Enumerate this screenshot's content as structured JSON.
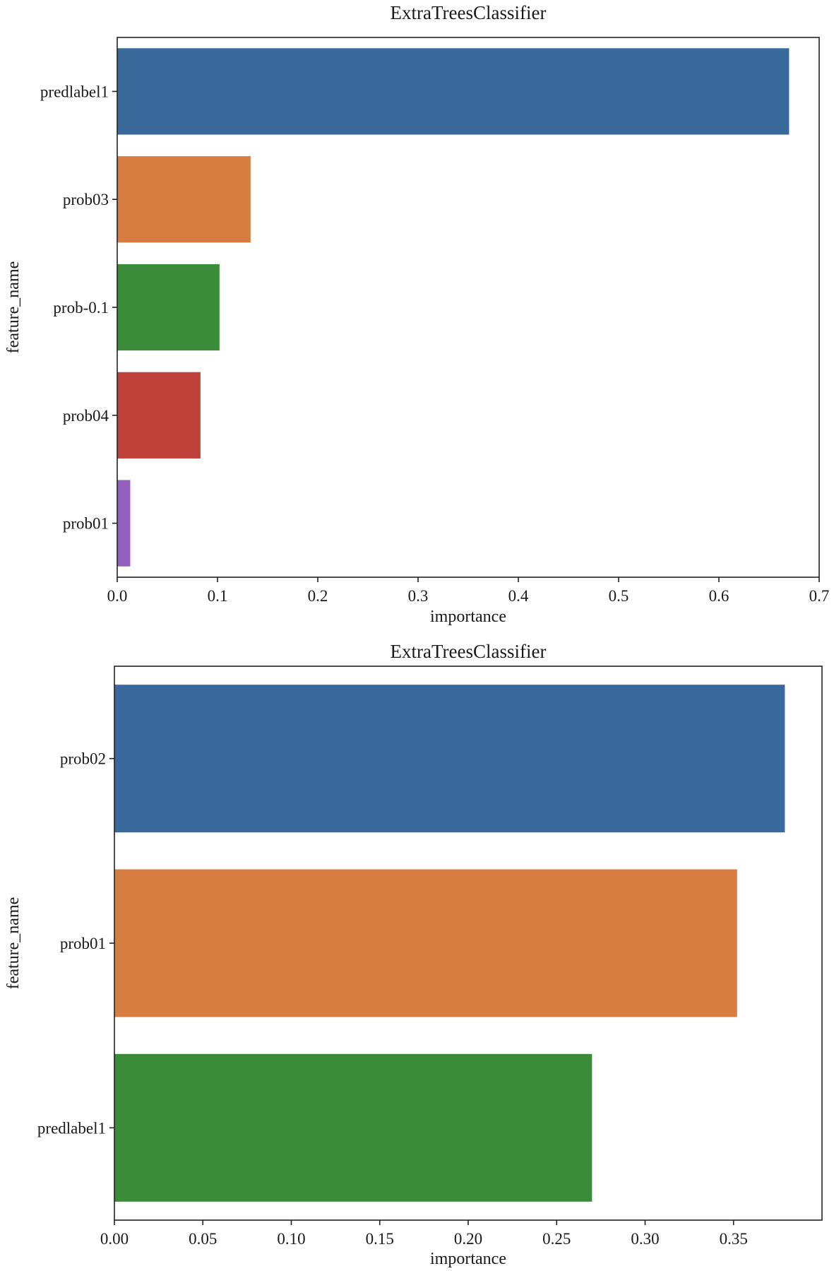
{
  "chart_data": [
    {
      "type": "bar",
      "orientation": "horizontal",
      "title": "ExtraTreesClassifier",
      "xlabel": "importance",
      "ylabel": "feature_name",
      "categories": [
        "predlabel1",
        "prob03",
        "prob-0.1",
        "prob04",
        "prob01"
      ],
      "values": [
        0.67,
        0.133,
        0.102,
        0.083,
        0.013
      ],
      "colors": [
        "#3a6a9c",
        "#d87d42",
        "#3a8c3a",
        "#c0403a",
        "#9460bd"
      ],
      "xlim": [
        0,
        0.7
      ],
      "xticks": [
        0.0,
        0.1,
        0.2,
        0.3,
        0.4,
        0.5,
        0.6,
        0.7
      ],
      "xtick_labels": [
        "0.0",
        "0.1",
        "0.2",
        "0.3",
        "0.4",
        "0.5",
        "0.6",
        "0.7"
      ],
      "grid": false
    },
    {
      "type": "bar",
      "orientation": "horizontal",
      "title": "ExtraTreesClassifier",
      "xlabel": "importance",
      "ylabel": "feature_name",
      "categories": [
        "prob02",
        "prob01",
        "predlabel1"
      ],
      "values": [
        0.379,
        0.352,
        0.27
      ],
      "colors": [
        "#3a6a9c",
        "#d87d42",
        "#3a8c3a"
      ],
      "xlim": [
        0,
        0.4
      ],
      "xticks": [
        0.0,
        0.05,
        0.1,
        0.15,
        0.2,
        0.25,
        0.3,
        0.35
      ],
      "xtick_labels": [
        "0.00",
        "0.05",
        "0.10",
        "0.15",
        "0.20",
        "0.25",
        "0.30",
        "0.35"
      ],
      "grid": false
    }
  ]
}
